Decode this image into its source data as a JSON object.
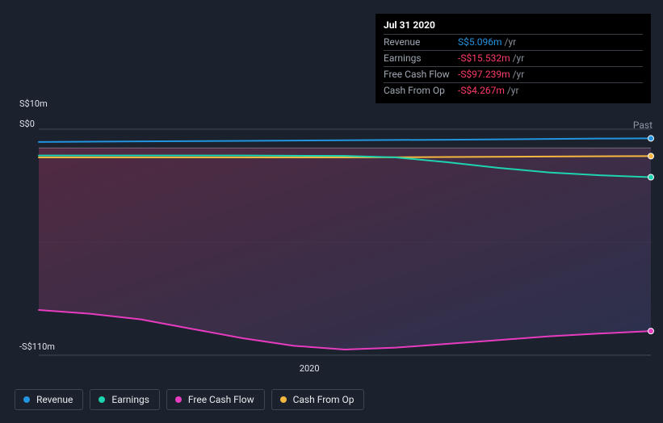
{
  "tooltip": {
    "date": "Jul 31 2020",
    "rows": [
      {
        "label": "Revenue",
        "value": "S$5.096m",
        "neg": false,
        "unit": "/yr"
      },
      {
        "label": "Earnings",
        "value": "-S$15.532m",
        "neg": true,
        "unit": "/yr"
      },
      {
        "label": "Free Cash Flow",
        "value": "-S$97.239m",
        "neg": true,
        "unit": "/yr"
      },
      {
        "label": "Cash From Op",
        "value": "-S$4.267m",
        "neg": true,
        "unit": "/yr"
      }
    ]
  },
  "chart": {
    "type": "area-line",
    "background_gradient": {
      "from": "#5b2b45",
      "to": "#2d3352"
    },
    "plot_bg": "#1b222d",
    "grid_color": "#3e4552",
    "axis_color": "#6b7280",
    "label_color": "#dfe3ea",
    "y": {
      "min": -110,
      "max": 10,
      "unit_prefix": "S$",
      "unit_suffix": "m",
      "ticks": [
        {
          "v": 10,
          "label": "S$10m"
        },
        {
          "v": 0,
          "label": "S$0"
        },
        {
          "v": -110,
          "label": "-S$110m"
        }
      ],
      "gridlines": [
        10,
        0,
        -50,
        -110
      ]
    },
    "x": {
      "min": 0,
      "max": 12,
      "ticks": [
        {
          "v": 5.3,
          "label": "2020"
        }
      ],
      "marker_x": 12
    },
    "past_label": "Past",
    "series": [
      {
        "key": "revenue",
        "name": "Revenue",
        "color": "#2394df",
        "line_width": 2,
        "fill": true,
        "fill_opacity": 0.0,
        "legend_dot": "#2394df",
        "points": [
          [
            0,
            3.2
          ],
          [
            2,
            3.5
          ],
          [
            4,
            3.8
          ],
          [
            6,
            4.1
          ],
          [
            8,
            4.4
          ],
          [
            10,
            4.8
          ],
          [
            11,
            5.0
          ],
          [
            12,
            5.1
          ]
        ],
        "end_marker": true
      },
      {
        "key": "earnings",
        "name": "Earnings",
        "color": "#1dd3b0",
        "line_width": 2,
        "fill": false,
        "legend_dot": "#1dd3b0",
        "points": [
          [
            0,
            -4.0
          ],
          [
            2,
            -4.0
          ],
          [
            4,
            -4.0
          ],
          [
            6,
            -4.2
          ],
          [
            7,
            -5.0
          ],
          [
            8,
            -7.5
          ],
          [
            9,
            -10.5
          ],
          [
            10,
            -13.0
          ],
          [
            11,
            -14.5
          ],
          [
            12,
            -15.5
          ]
        ],
        "end_marker": true
      },
      {
        "key": "cash_op",
        "name": "Cash From Op",
        "color": "#f4b740",
        "line_width": 2,
        "fill": false,
        "legend_dot": "#f4b740",
        "points": [
          [
            0,
            -5.0
          ],
          [
            2,
            -5.0
          ],
          [
            4,
            -5.0
          ],
          [
            6,
            -5.0
          ],
          [
            8,
            -4.8
          ],
          [
            10,
            -4.5
          ],
          [
            12,
            -4.3
          ]
        ],
        "end_marker": true
      },
      {
        "key": "fcf",
        "name": "Free Cash Flow",
        "color": "#e73cc0",
        "line_width": 2,
        "fill": true,
        "fill_opacity": 0.55,
        "fill_gradient": {
          "top": "#5b2b45",
          "bottom": "#2d3352"
        },
        "legend_dot": "#e73cc0",
        "points": [
          [
            0,
            -86
          ],
          [
            1,
            -88
          ],
          [
            2,
            -91
          ],
          [
            3,
            -96
          ],
          [
            4,
            -101
          ],
          [
            5,
            -105
          ],
          [
            6,
            -107
          ],
          [
            7,
            -106
          ],
          [
            8,
            -104
          ],
          [
            9,
            -102
          ],
          [
            10,
            -100
          ],
          [
            11,
            -98.5
          ],
          [
            12,
            -97.2
          ]
        ],
        "end_marker": true
      }
    ]
  },
  "legend": {
    "items": [
      {
        "key": "revenue",
        "label": "Revenue",
        "color": "#2394df"
      },
      {
        "key": "earnings",
        "label": "Earnings",
        "color": "#1dd3b0"
      },
      {
        "key": "fcf",
        "label": "Free Cash Flow",
        "color": "#e73cc0"
      },
      {
        "key": "cash_op",
        "label": "Cash From Op",
        "color": "#f4b740"
      }
    ]
  },
  "fonts": {
    "base_size": 12,
    "label_size": 11
  }
}
